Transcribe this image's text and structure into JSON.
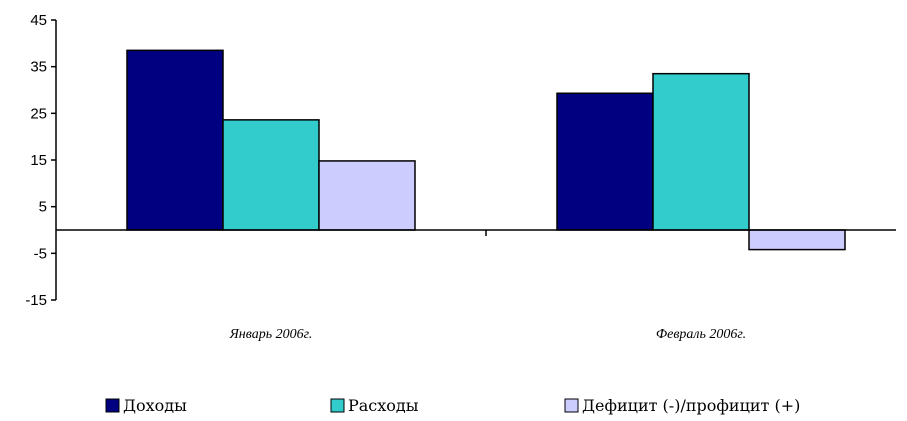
{
  "chart_data": {
    "type": "bar",
    "categories": [
      "Январь 2006г.",
      "Февраль 2006г."
    ],
    "series": [
      {
        "name": "Доходы",
        "values": [
          38.5,
          29.3
        ],
        "color": "#000080"
      },
      {
        "name": "Расходы",
        "values": [
          23.6,
          33.5
        ],
        "color": "#33CCCC"
      },
      {
        "name": "Дефицит (-)/профицит (+)",
        "values": [
          14.8,
          -4.2
        ],
        "color": "#CCCCFF"
      }
    ],
    "ylim": [
      -15,
      45
    ],
    "yticks": [
      "45",
      "35",
      "25",
      "15",
      "5",
      "-5",
      "-15"
    ],
    "grid": false,
    "legend_position": "bottom"
  }
}
